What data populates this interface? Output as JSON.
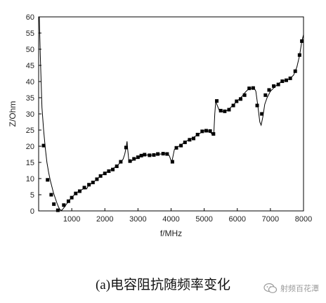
{
  "chart_data": {
    "type": "line",
    "title": "",
    "xlabel": "f/MHz",
    "ylabel": "Z/Ohm",
    "xlim": [
      0,
      8000
    ],
    "ylim": [
      0,
      60
    ],
    "xticks": [
      1000,
      2000,
      3000,
      4000,
      5000,
      6000,
      7000,
      8000
    ],
    "yticks": [
      0,
      5,
      10,
      15,
      20,
      25,
      30,
      35,
      40,
      45,
      50,
      55,
      60
    ],
    "grid": false,
    "marker": "square",
    "series": [
      {
        "values_line": [
          [
            20,
            60
          ],
          [
            50,
            48
          ],
          [
            100,
            32
          ],
          [
            150,
            25
          ],
          [
            200,
            19.5
          ],
          [
            250,
            15
          ],
          [
            300,
            12
          ],
          [
            350,
            9.5
          ],
          [
            400,
            7.5
          ],
          [
            450,
            5.5
          ],
          [
            500,
            4
          ],
          [
            550,
            2.5
          ],
          [
            600,
            1.2
          ],
          [
            650,
            0.3
          ],
          [
            700,
            0.2
          ],
          [
            750,
            0.8
          ],
          [
            800,
            1.5
          ],
          [
            850,
            2.2
          ],
          [
            900,
            3.0
          ],
          [
            1000,
            4.2
          ],
          [
            1100,
            5.2
          ],
          [
            1200,
            6.0
          ],
          [
            1300,
            6.5
          ],
          [
            1400,
            7.2
          ],
          [
            1450,
            6.8
          ],
          [
            1500,
            7.8
          ],
          [
            1600,
            8.5
          ],
          [
            1700,
            9.3
          ],
          [
            1800,
            10.2
          ],
          [
            1900,
            11.0
          ],
          [
            2000,
            11.7
          ],
          [
            2100,
            12.2
          ],
          [
            2200,
            12.8
          ],
          [
            2300,
            13.5
          ],
          [
            2400,
            14.3
          ],
          [
            2500,
            15.2
          ],
          [
            2550,
            16.0
          ],
          [
            2600,
            17.5
          ],
          [
            2640,
            19.5
          ],
          [
            2670,
            21.5
          ],
          [
            2690,
            19.0
          ],
          [
            2720,
            16.0
          ],
          [
            2750,
            15.2
          ],
          [
            2800,
            15.4
          ],
          [
            2900,
            16.0
          ],
          [
            3000,
            16.5
          ],
          [
            3100,
            17.0
          ],
          [
            3200,
            17.2
          ],
          [
            3300,
            17.3
          ],
          [
            3400,
            17.2
          ],
          [
            3500,
            17.3
          ],
          [
            3600,
            17.5
          ],
          [
            3700,
            17.6
          ],
          [
            3800,
            17.7
          ],
          [
            3900,
            17.6
          ],
          [
            3950,
            17.0
          ],
          [
            4000,
            15.5
          ],
          [
            4020,
            15.0
          ],
          [
            4060,
            17.0
          ],
          [
            4100,
            19.0
          ],
          [
            4200,
            19.8
          ],
          [
            4300,
            20.4
          ],
          [
            4400,
            21.2
          ],
          [
            4500,
            21.8
          ],
          [
            4600,
            22.3
          ],
          [
            4700,
            22.9
          ],
          [
            4800,
            23.5
          ],
          [
            4900,
            24.2
          ],
          [
            5000,
            24.8
          ],
          [
            5100,
            24.8
          ],
          [
            5200,
            24.2
          ],
          [
            5250,
            23.5
          ],
          [
            5290,
            23.8
          ],
          [
            5320,
            30.0
          ],
          [
            5350,
            34.0
          ],
          [
            5380,
            33.0
          ],
          [
            5450,
            31.2
          ],
          [
            5550,
            30.8
          ],
          [
            5650,
            30.8
          ],
          [
            5750,
            31.5
          ],
          [
            5850,
            32.5
          ],
          [
            5950,
            33.5
          ],
          [
            6050,
            34.5
          ],
          [
            6150,
            35.5
          ],
          [
            6250,
            36.8
          ],
          [
            6350,
            37.8
          ],
          [
            6450,
            38.0
          ],
          [
            6500,
            38.2
          ],
          [
            6560,
            37.0
          ],
          [
            6620,
            32.5
          ],
          [
            6680,
            27.5
          ],
          [
            6720,
            26.5
          ],
          [
            6770,
            29.0
          ],
          [
            6830,
            33.0
          ],
          [
            6900,
            35.0
          ],
          [
            7000,
            37.0
          ],
          [
            7100,
            38.0
          ],
          [
            7200,
            39.0
          ],
          [
            7300,
            39.8
          ],
          [
            7400,
            40.2
          ],
          [
            7500,
            40.5
          ],
          [
            7600,
            41.0
          ],
          [
            7700,
            42.0
          ],
          [
            7800,
            44.5
          ],
          [
            7880,
            48.0
          ],
          [
            7950,
            52.5
          ],
          [
            8000,
            54.5
          ]
        ],
        "markers": [
          [
            150,
            20.2
          ],
          [
            270,
            9.6
          ],
          [
            380,
            5.0
          ],
          [
            460,
            2.1
          ],
          [
            580,
            0.2
          ],
          [
            760,
            1.8
          ],
          [
            900,
            3.0
          ],
          [
            1000,
            4.1
          ],
          [
            1120,
            5.4
          ],
          [
            1240,
            6.1
          ],
          [
            1380,
            7.2
          ],
          [
            1520,
            8.1
          ],
          [
            1640,
            8.8
          ],
          [
            1760,
            9.8
          ],
          [
            1870,
            10.8
          ],
          [
            2000,
            11.6
          ],
          [
            2120,
            12.3
          ],
          [
            2240,
            12.8
          ],
          [
            2360,
            13.8
          ],
          [
            2480,
            15.2
          ],
          [
            2640,
            19.6
          ],
          [
            2760,
            15.4
          ],
          [
            2880,
            16.1
          ],
          [
            3000,
            16.6
          ],
          [
            3100,
            17.1
          ],
          [
            3200,
            17.4
          ],
          [
            3350,
            17.2
          ],
          [
            3480,
            17.3
          ],
          [
            3600,
            17.6
          ],
          [
            3760,
            17.7
          ],
          [
            3880,
            17.6
          ],
          [
            4040,
            15.2
          ],
          [
            4160,
            19.5
          ],
          [
            4300,
            20.2
          ],
          [
            4420,
            21.2
          ],
          [
            4560,
            22.0
          ],
          [
            4680,
            22.4
          ],
          [
            4800,
            23.6
          ],
          [
            4940,
            24.6
          ],
          [
            5060,
            24.8
          ],
          [
            5180,
            24.7
          ],
          [
            5280,
            23.8
          ],
          [
            5380,
            34.0
          ],
          [
            5500,
            31.0
          ],
          [
            5620,
            30.8
          ],
          [
            5750,
            31.3
          ],
          [
            5880,
            32.6
          ],
          [
            5980,
            33.9
          ],
          [
            6100,
            34.6
          ],
          [
            6220,
            35.8
          ],
          [
            6360,
            37.9
          ],
          [
            6480,
            38.0
          ],
          [
            6600,
            32.6
          ],
          [
            6740,
            30.0
          ],
          [
            6850,
            35.8
          ],
          [
            6960,
            37.4
          ],
          [
            7100,
            38.6
          ],
          [
            7240,
            39.1
          ],
          [
            7360,
            40.1
          ],
          [
            7480,
            40.4
          ],
          [
            7600,
            41.0
          ],
          [
            7750,
            43.2
          ],
          [
            7880,
            48.2
          ],
          [
            7950,
            52.5
          ]
        ]
      }
    ]
  },
  "caption": "(a)电容阻抗随频率变化",
  "watermark": {
    "text": "射频百花潭",
    "icon": "wechat-icon"
  }
}
